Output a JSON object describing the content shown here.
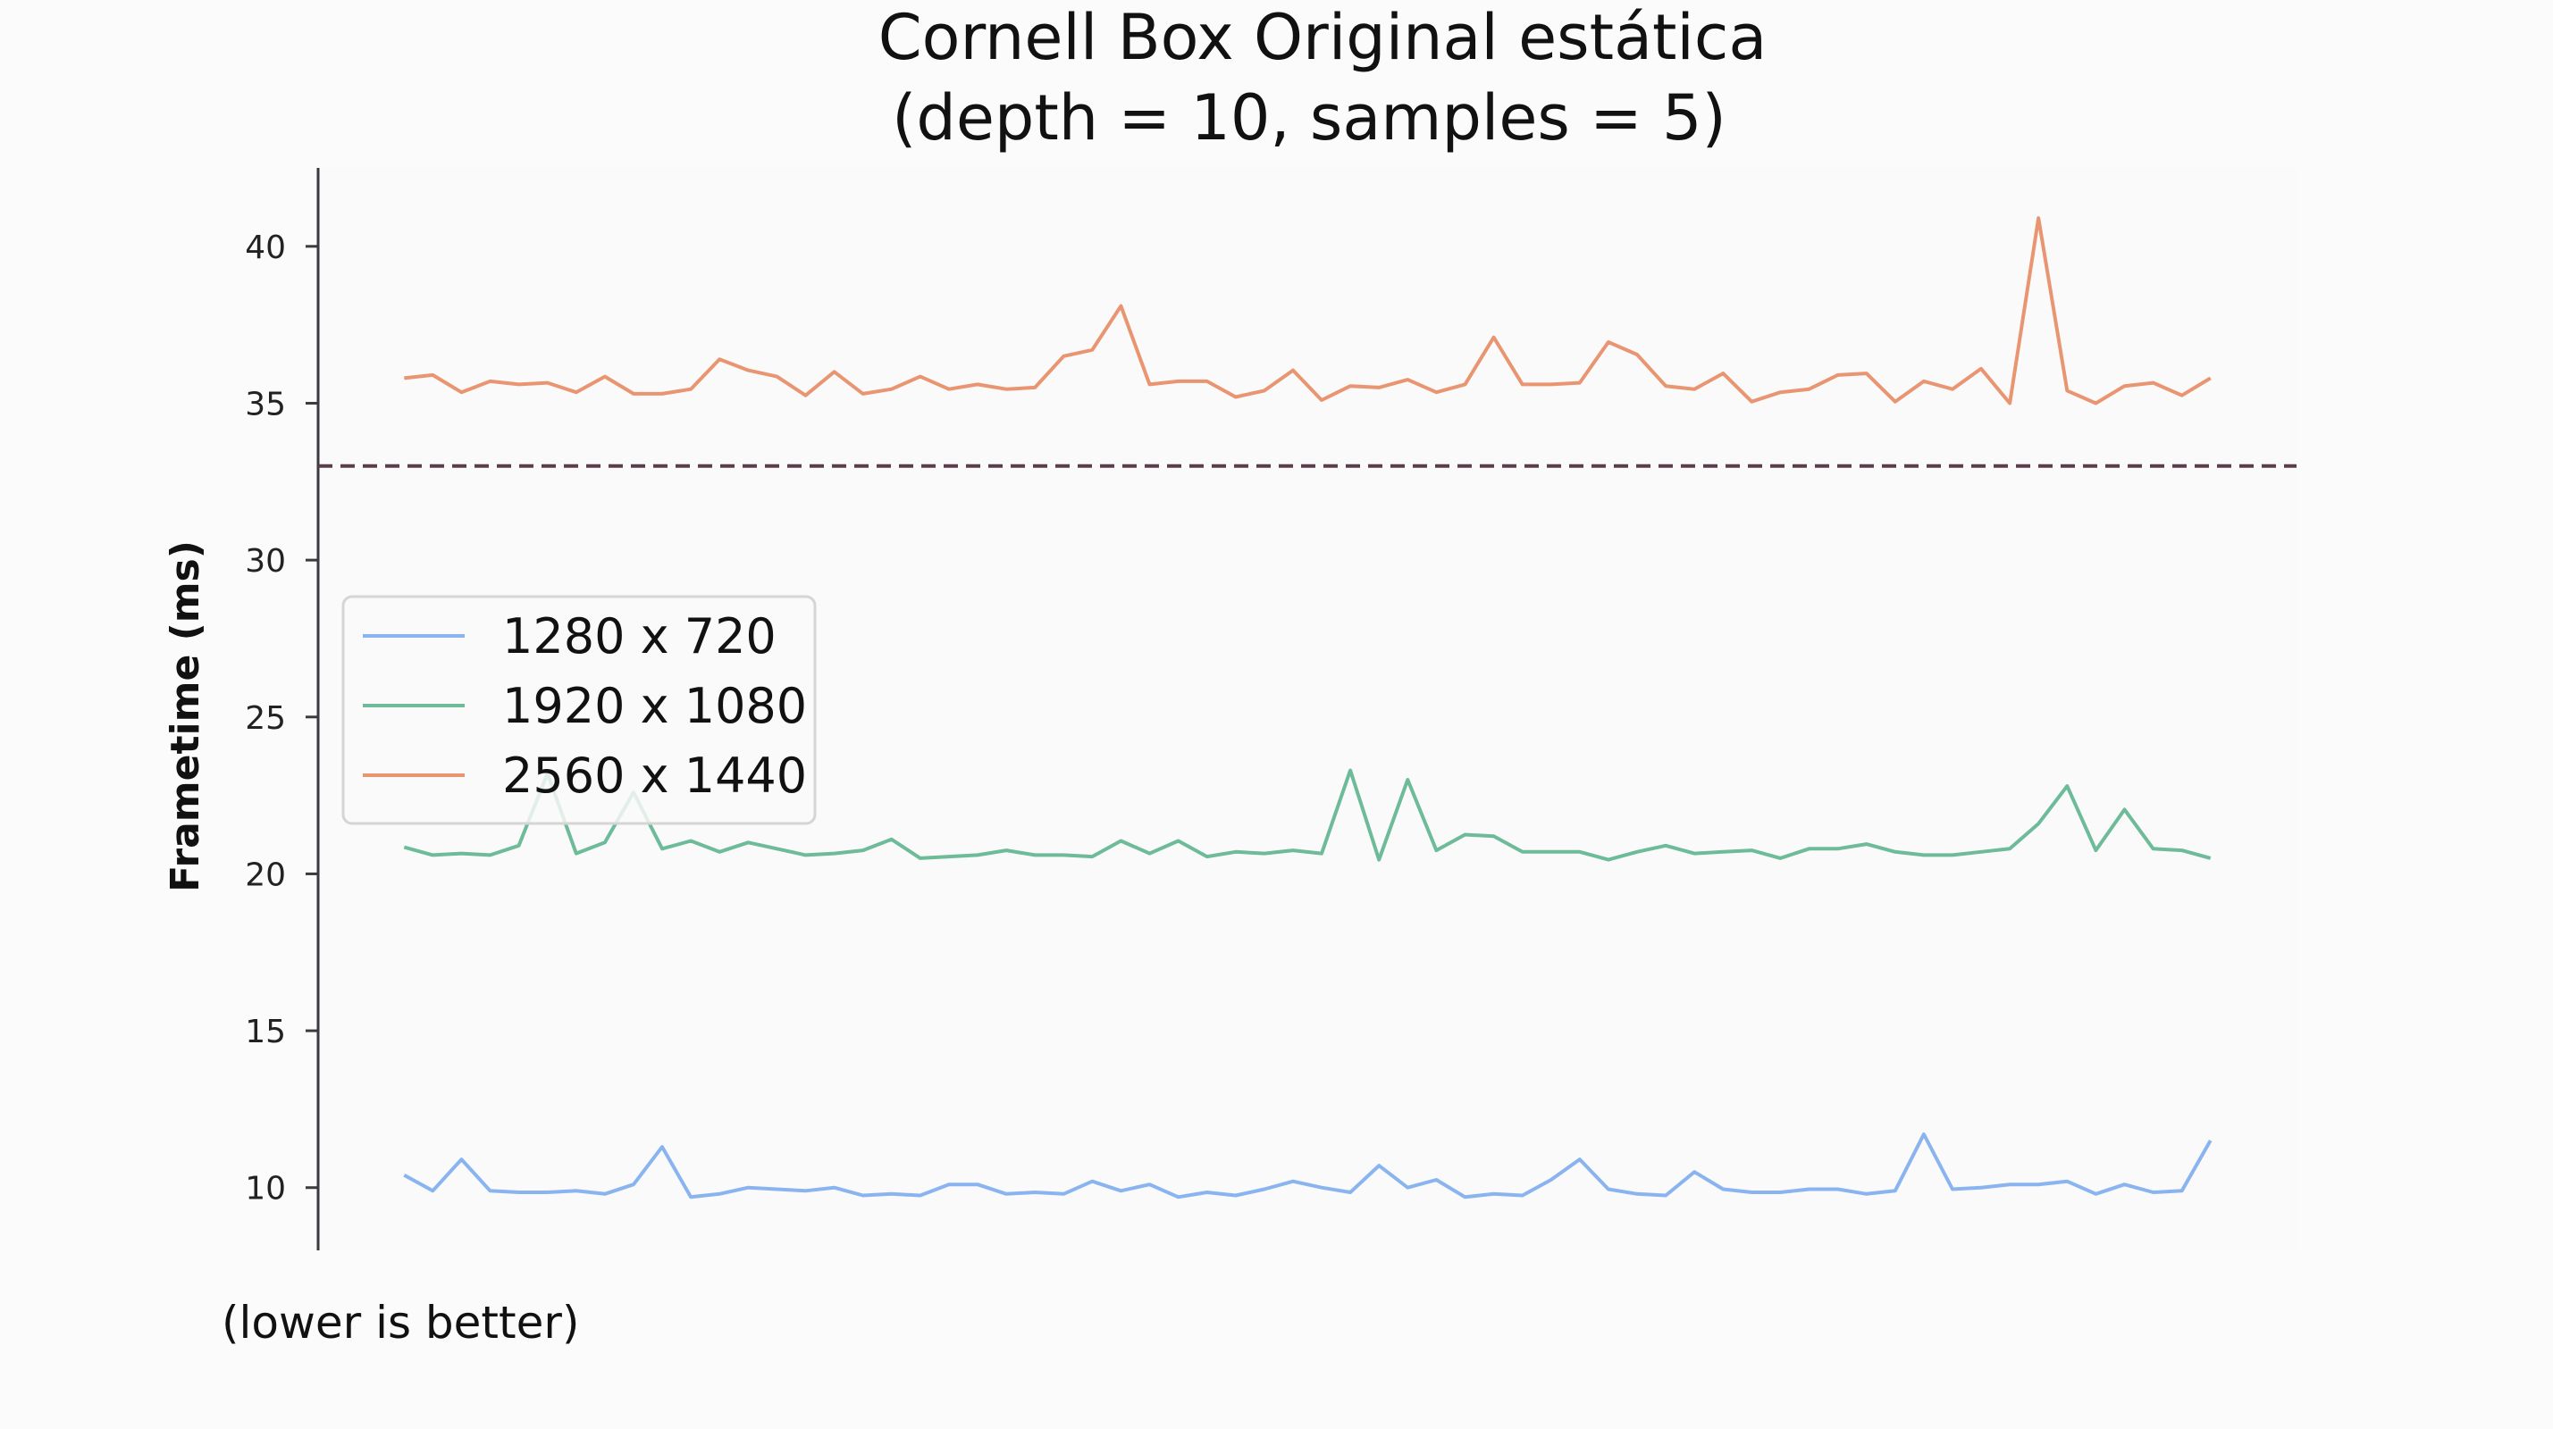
{
  "chart_data": {
    "type": "line",
    "title": "Cornell Box Original estática",
    "subtitle": "(depth = 10, samples = 5)",
    "xlabel": "",
    "ylabel": "Frametime (ms)",
    "note": "(lower is better)",
    "xlim": [
      -3,
      66
    ],
    "ylim": [
      8,
      42.5
    ],
    "yticks": [
      10,
      15,
      20,
      25,
      30,
      35,
      40
    ],
    "grid": false,
    "legend_position": "center-left",
    "reference_line": {
      "y": 33,
      "style": "dashed",
      "color": "#5a3d4a"
    },
    "x": [
      0,
      1,
      2,
      3,
      4,
      5,
      6,
      7,
      8,
      9,
      10,
      11,
      12,
      13,
      14,
      15,
      16,
      17,
      18,
      19,
      20,
      21,
      22,
      23,
      24,
      25,
      26,
      27,
      28,
      29,
      30,
      31,
      32,
      33,
      34,
      35,
      36,
      37,
      38,
      39,
      40,
      41,
      42,
      43,
      44,
      45,
      46,
      47,
      48,
      49,
      50,
      51,
      52,
      53,
      54,
      55,
      56,
      57,
      58,
      59,
      60,
      61,
      62,
      63
    ],
    "series": [
      {
        "name": "1280 x 720",
        "color": "#8ab4f0",
        "values": [
          10.4,
          9.9,
          10.9,
          9.9,
          9.85,
          9.85,
          9.9,
          9.8,
          10.1,
          11.3,
          9.7,
          9.8,
          10.0,
          9.95,
          9.9,
          10.0,
          9.75,
          9.8,
          9.75,
          10.1,
          10.1,
          9.8,
          9.85,
          9.8,
          10.2,
          9.9,
          10.1,
          9.7,
          9.85,
          9.75,
          9.95,
          10.2,
          10.0,
          9.85,
          10.7,
          10.0,
          10.25,
          9.7,
          9.8,
          9.75,
          10.25,
          10.9,
          9.95,
          9.8,
          9.75,
          10.5,
          9.95,
          9.85,
          9.85,
          9.95,
          9.95,
          9.8,
          9.9,
          11.7,
          9.95,
          10.0,
          10.1,
          10.1,
          10.2,
          9.8,
          10.1,
          9.85,
          9.9,
          11.5
        ]
      },
      {
        "name": "1920 x 1080",
        "color": "#6dbb98",
        "values": [
          20.85,
          20.6,
          20.65,
          20.6,
          20.9,
          23.2,
          20.65,
          21.0,
          22.6,
          20.8,
          21.05,
          20.7,
          21.0,
          20.8,
          20.6,
          20.65,
          20.75,
          21.1,
          20.5,
          20.55,
          20.6,
          20.75,
          20.6,
          20.6,
          20.55,
          21.05,
          20.65,
          21.05,
          20.55,
          20.7,
          20.65,
          20.75,
          20.65,
          23.3,
          20.45,
          23.0,
          20.75,
          21.25,
          21.2,
          20.7,
          20.7,
          20.7,
          20.45,
          20.7,
          20.9,
          20.65,
          20.7,
          20.75,
          20.5,
          20.8,
          20.8,
          20.95,
          20.7,
          20.6,
          20.6,
          20.7,
          20.8,
          21.6,
          22.8,
          20.75,
          22.05,
          20.8,
          20.75,
          20.5
        ]
      },
      {
        "name": "2560 x 1440",
        "color": "#e99572",
        "values": [
          35.8,
          35.9,
          35.35,
          35.7,
          35.6,
          35.65,
          35.35,
          35.85,
          35.3,
          35.3,
          35.45,
          36.4,
          36.05,
          35.85,
          35.25,
          36.0,
          35.3,
          35.45,
          35.85,
          35.45,
          35.6,
          35.45,
          35.5,
          36.5,
          36.7,
          38.1,
          35.6,
          35.7,
          35.7,
          35.2,
          35.4,
          36.05,
          35.1,
          35.55,
          35.5,
          35.75,
          35.35,
          35.6,
          37.1,
          35.6,
          35.6,
          35.65,
          36.95,
          36.55,
          35.55,
          35.45,
          35.95,
          35.05,
          35.35,
          35.45,
          35.9,
          35.95,
          35.05,
          35.7,
          35.45,
          36.1,
          35.0,
          40.9,
          35.4,
          35.0,
          35.55,
          35.65,
          35.25,
          35.8
        ]
      }
    ]
  }
}
